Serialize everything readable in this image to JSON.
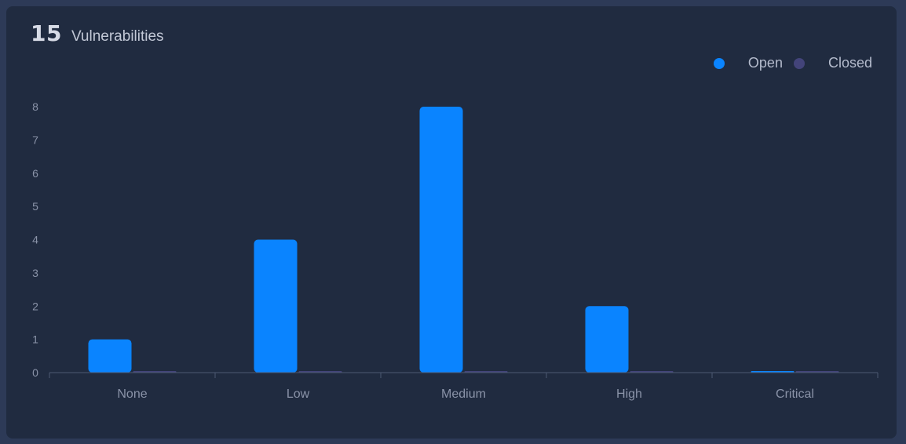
{
  "header": {
    "count": "15",
    "title": "Vulnerabilities"
  },
  "colors": {
    "open": "#0a84ff",
    "closed": "#43447a",
    "axis": "#4d5a72",
    "tick_label": "#8a93a8"
  },
  "chart_data": {
    "type": "bar",
    "categories": [
      "None",
      "Low",
      "Medium",
      "High",
      "Critical"
    ],
    "series": [
      {
        "name": "Open",
        "values": [
          1,
          4,
          8,
          2,
          0
        ]
      },
      {
        "name": "Closed",
        "values": [
          0,
          0,
          0,
          0,
          0
        ]
      }
    ],
    "ylim": [
      0,
      8
    ],
    "yticks": [
      "0",
      "1",
      "2",
      "3",
      "4",
      "5",
      "6",
      "7",
      "8"
    ],
    "legend_position": "top-right",
    "grid": false,
    "title": "",
    "xlabel": "",
    "ylabel": ""
  }
}
